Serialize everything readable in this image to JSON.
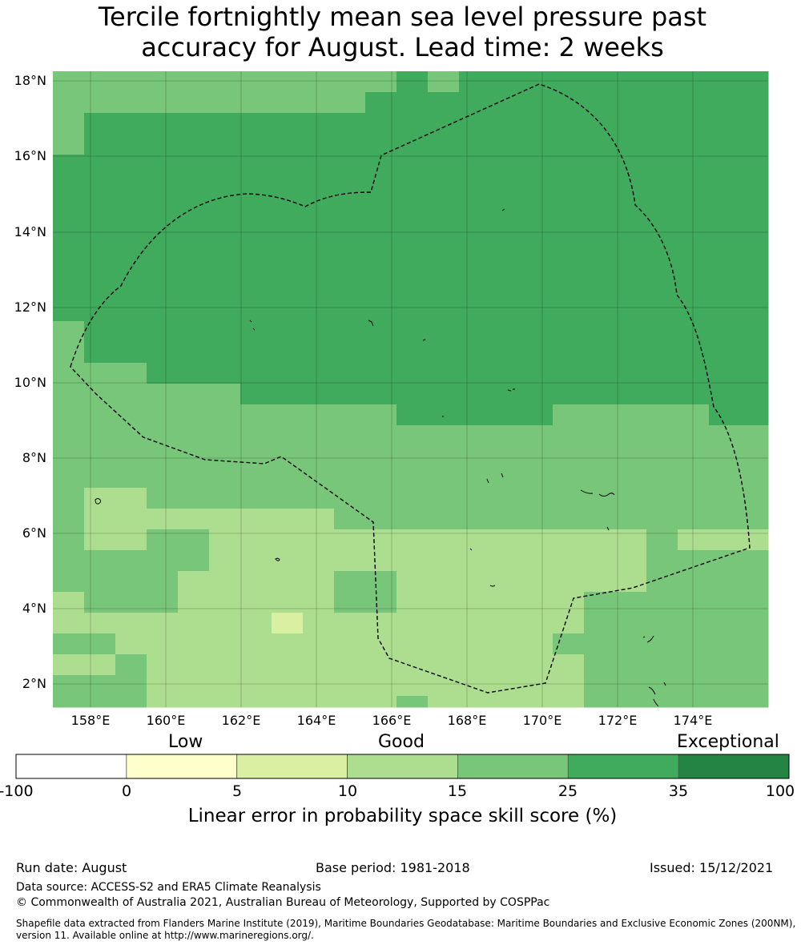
{
  "title_line1": "Tercile fortnightly mean sea level pressure past",
  "title_line2": "accuracy for August. Lead time: 2 weeks",
  "map": {
    "lat_labels": [
      "18°N",
      "16°N",
      "14°N",
      "12°N",
      "10°N",
      "8°N",
      "6°N",
      "4°N",
      "2°N"
    ],
    "lon_labels": [
      "158°E",
      "160°E",
      "162°E",
      "164°E",
      "166°E",
      "168°E",
      "170°E",
      "172°E",
      "174°E"
    ],
    "grid_lon": [
      157,
      175.95
    ],
    "grid_lat": [
      1.45,
      18.3
    ],
    "boundary": "dashed black line (exclusive economic zone)",
    "colors": {
      "c0": "#ffffcc",
      "c1": "#d9f0a3",
      "c2": "#addd8e",
      "c3": "#78c679",
      "c4": "#41ab5d",
      "c5": "#238443"
    }
  },
  "colorbar": {
    "category_labels": {
      "low": "Low",
      "good": "Good",
      "exceptional": "Exceptional"
    },
    "ticks": [
      "-100",
      "0",
      "5",
      "10",
      "15",
      "25",
      "35",
      "100"
    ],
    "segment_colors": [
      "#ffffff",
      "#ffffcc",
      "#d9f0a3",
      "#addd8e",
      "#78c679",
      "#41ab5d",
      "#238443"
    ],
    "title": "Linear error in probability space skill score (%)"
  },
  "footer": {
    "run_date": "Run date: August",
    "base_period": "Base period: 1981-2018",
    "issued": "Issued: 15/12/2021",
    "data_source": "Data source: ACCESS-S2 and ERA5 Climate Reanalysis",
    "copyright": "© Commonwealth of Australia 2021, Australian Bureau of Meteorology, Supported by COSPPac",
    "shapefile": "Shapefile data extracted from Flanders Marine Institute (2019), Maritime Boundaries Geodatabase: Maritime Boundaries and Exclusive Economic Zones (200NM), version 11. Available online at http://www.marineregions.org/."
  }
}
